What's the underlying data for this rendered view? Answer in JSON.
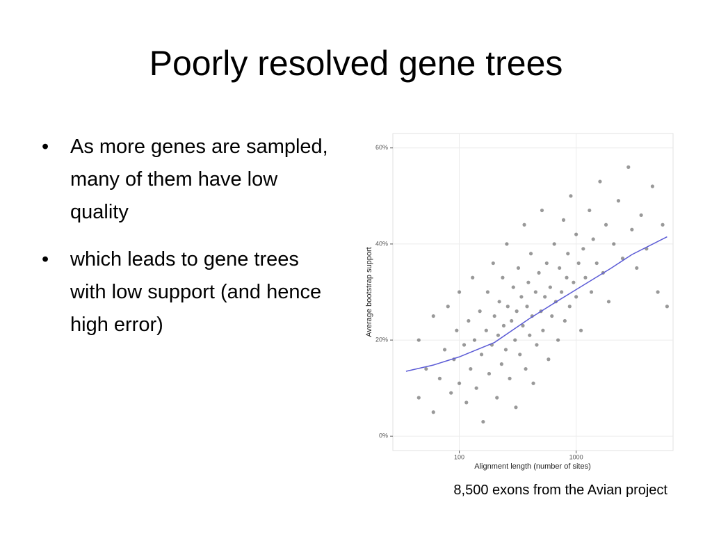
{
  "slide": {
    "title": "Poorly resolved gene trees",
    "bullets": [
      "As more genes are sampled, many of them have low quality",
      "which leads to gene trees with low support (and hence high error)"
    ],
    "caption": "8,500 exons from the Avian project"
  },
  "chart_data": {
    "type": "scatter",
    "x_label": "Alignment length (number of sites)",
    "y_label": "Average bootstrap support",
    "xscale": "log",
    "xlim": [
      27,
      6750
    ],
    "ylim": [
      -3,
      63
    ],
    "xticks": [
      100,
      1000
    ],
    "yticks": [
      {
        "value": 0,
        "label": "0%"
      },
      {
        "value": 20,
        "label": "20%"
      },
      {
        "value": 40,
        "label": "40%"
      },
      {
        "value": 60,
        "label": "60%"
      }
    ],
    "grid": true,
    "series": [
      {
        "type": "scatter",
        "color": "#000000",
        "x": [
          45,
          45,
          52,
          60,
          60,
          68,
          75,
          80,
          85,
          90,
          95,
          100,
          100,
          110,
          115,
          120,
          125,
          130,
          135,
          140,
          150,
          155,
          160,
          170,
          175,
          180,
          190,
          195,
          200,
          210,
          215,
          220,
          230,
          235,
          240,
          250,
          255,
          260,
          270,
          280,
          290,
          300,
          305,
          310,
          320,
          330,
          340,
          350,
          360,
          370,
          380,
          390,
          400,
          410,
          420,
          430,
          450,
          460,
          480,
          500,
          510,
          520,
          540,
          560,
          580,
          600,
          620,
          650,
          670,
          700,
          720,
          750,
          780,
          800,
          830,
          850,
          880,
          900,
          950,
          1000,
          1000,
          1050,
          1100,
          1150,
          1200,
          1300,
          1350,
          1400,
          1500,
          1600,
          1700,
          1800,
          1900,
          2100,
          2300,
          2500,
          2800,
          3000,
          3300,
          3600,
          4000,
          4500,
          5000,
          5500,
          6000
        ],
        "values": [
          8,
          20,
          14,
          25,
          5,
          12,
          18,
          27,
          9,
          16,
          22,
          11,
          30,
          19,
          7,
          24,
          14,
          33,
          20,
          10,
          26,
          17,
          3,
          22,
          30,
          13,
          19,
          36,
          25,
          8,
          21,
          28,
          15,
          33,
          23,
          18,
          40,
          27,
          12,
          24,
          31,
          20,
          6,
          26,
          35,
          17,
          29,
          23,
          44,
          14,
          27,
          32,
          21,
          38,
          25,
          11,
          30,
          19,
          34,
          26,
          47,
          22,
          29,
          36,
          16,
          31,
          25,
          40,
          28,
          20,
          35,
          30,
          45,
          24,
          33,
          38,
          27,
          50,
          32,
          29,
          42,
          36,
          22,
          39,
          33,
          47,
          30,
          41,
          36,
          53,
          34,
          44,
          28,
          40,
          49,
          37,
          56,
          43,
          35,
          46,
          39,
          52,
          30,
          44,
          27
        ]
      },
      {
        "type": "line",
        "color": "#5b5bd6",
        "x": [
          35,
          60,
          100,
          200,
          400,
          700,
          1000,
          2000,
          3000,
          6000
        ],
        "values": [
          13.5,
          14.8,
          16.5,
          19.5,
          24.5,
          28.2,
          30.5,
          35,
          37.8,
          41.5
        ]
      }
    ]
  }
}
